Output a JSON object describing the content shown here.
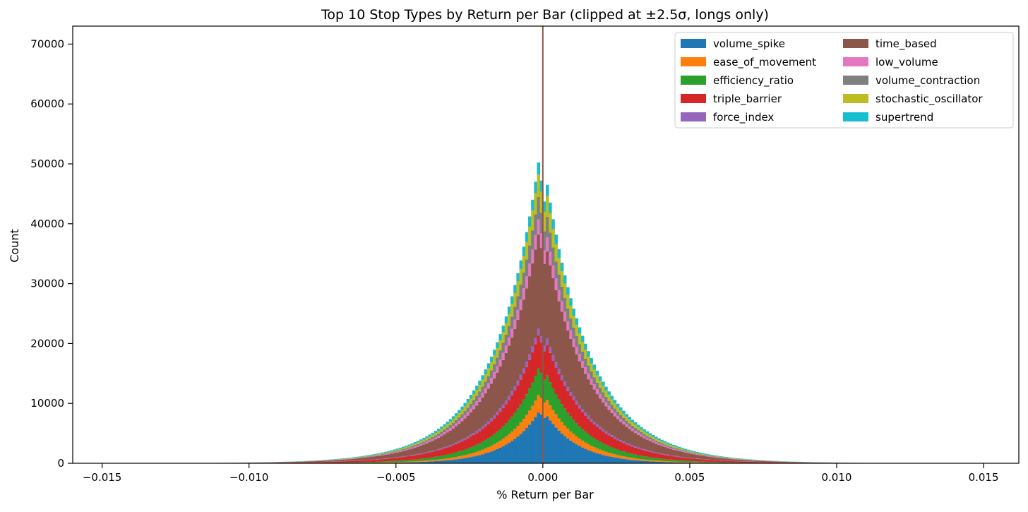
{
  "chart_data": {
    "type": "histogram-stacked",
    "title": "Top 10 Stop Types by Return per Bar (clipped at ±2.5σ, longs only)",
    "xlabel": "% Return per Bar",
    "ylabel": "Count",
    "xlim": [
      -0.016,
      0.0162
    ],
    "ylim": [
      0,
      73000
    ],
    "x_ticks": [
      -0.015,
      -0.01,
      -0.005,
      0.0,
      0.005,
      0.01,
      0.015
    ],
    "x_tick_labels": [
      "−0.015",
      "−0.010",
      "−0.005",
      "0.000",
      "0.005",
      "0.010",
      "0.015"
    ],
    "y_ticks": [
      0,
      10000,
      20000,
      30000,
      40000,
      50000,
      60000,
      70000
    ],
    "y_tick_labels": [
      "0",
      "10000",
      "20000",
      "30000",
      "40000",
      "50000",
      "60000",
      "70000"
    ],
    "grid": false,
    "legend_location": "top-right",
    "legend_columns": 2,
    "vertical_line": {
      "x": 0.0,
      "color": "#8c564b"
    },
    "bin_range": [
      -0.015,
      0.015
    ],
    "bin_count": 300,
    "series": [
      {
        "name": "volume_spike",
        "color": "#1f77b4",
        "peak": 9000,
        "scale": 0.0011,
        "tail": 0.00014
      },
      {
        "name": "ease_of_movement",
        "color": "#ff7f0e",
        "peak": 3000,
        "scale": 0.0014,
        "tail": 0.0003
      },
      {
        "name": "efficiency_ratio",
        "color": "#2ca02c",
        "peak": 4500,
        "scale": 0.0016,
        "tail": 0.0006
      },
      {
        "name": "triple_barrier",
        "color": "#d62728",
        "peak": 5500,
        "scale": 0.002,
        "tail": 0.0048
      },
      {
        "name": "force_index",
        "color": "#9467bd",
        "peak": 1100,
        "scale": 0.0019,
        "tail": 0.0006
      },
      {
        "name": "time_based",
        "color": "#8c564b",
        "peak": 16000,
        "scale": 0.0016,
        "tail": 0.0004
      },
      {
        "name": "low_volume",
        "color": "#e377c2",
        "peak": 2600,
        "scale": 0.0016,
        "tail": 0.0004
      },
      {
        "name": "volume_contraction",
        "color": "#7f7f7f",
        "peak": 3800,
        "scale": 0.0015,
        "tail": 0.0003
      },
      {
        "name": "stochastic_oscillator",
        "color": "#bcbd22",
        "peak": 3800,
        "scale": 0.0016,
        "tail": 0.0003
      },
      {
        "name": "supertrend",
        "color": "#17becf",
        "peak": 2000,
        "scale": 0.002,
        "tail": 0.0005
      }
    ],
    "approx_peak_total": 54000
  }
}
